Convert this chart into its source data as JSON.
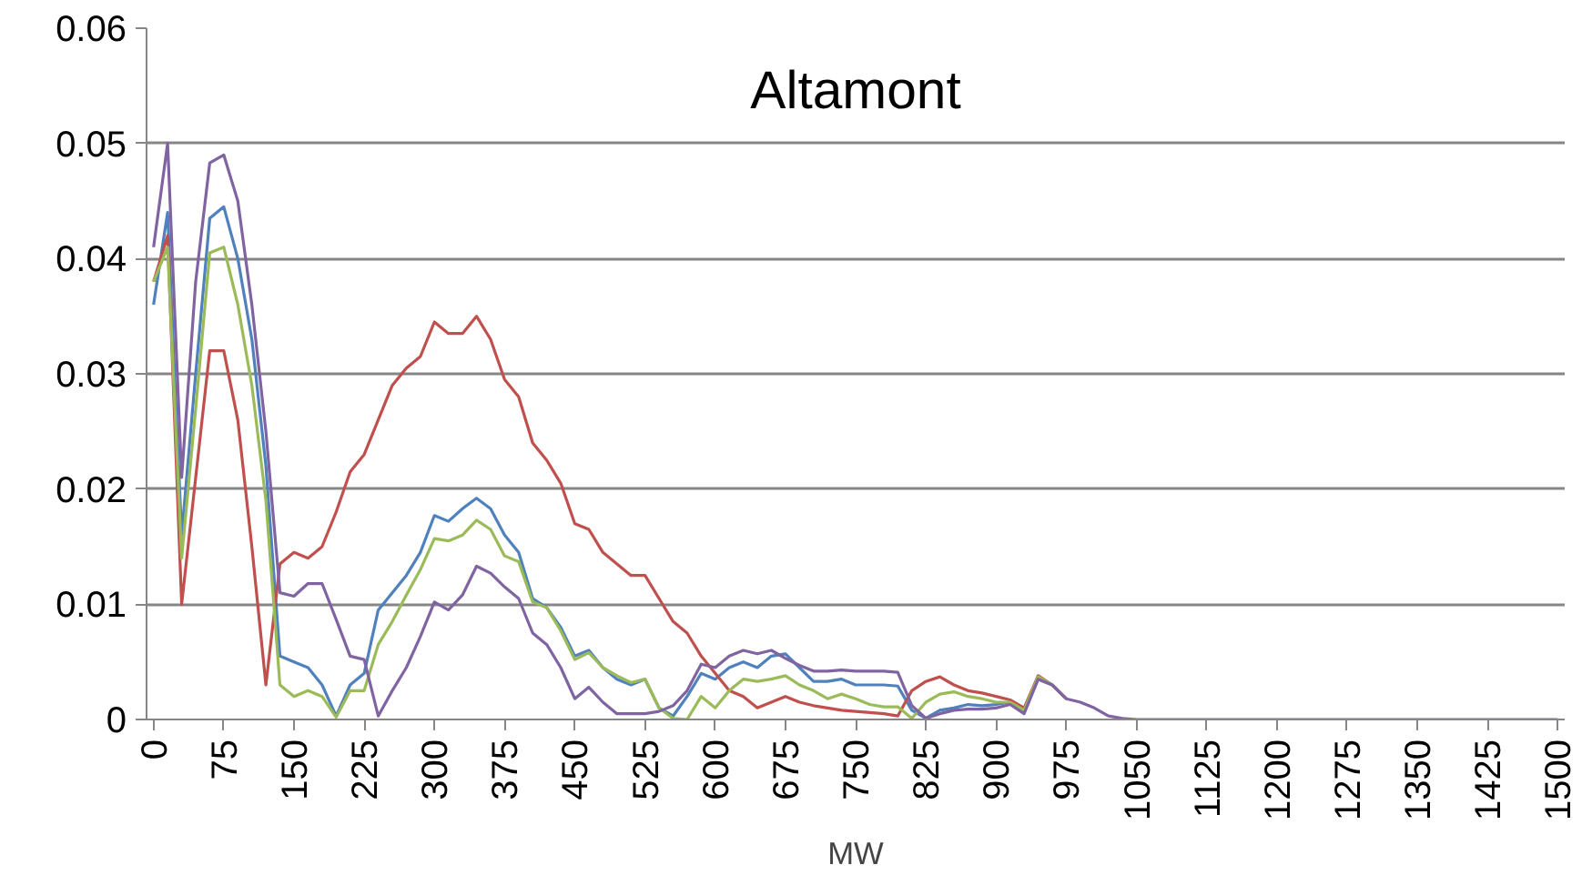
{
  "chart_data": {
    "type": "line",
    "title": "Altamont",
    "xlabel": "MW",
    "x": [
      0,
      15,
      30,
      45,
      60,
      75,
      90,
      105,
      120,
      135,
      150,
      165,
      180,
      195,
      210,
      225,
      240,
      255,
      270,
      285,
      300,
      315,
      330,
      345,
      360,
      375,
      390,
      405,
      420,
      435,
      450,
      465,
      480,
      495,
      510,
      525,
      540,
      555,
      570,
      585,
      600,
      615,
      630,
      645,
      660,
      675,
      690,
      705,
      720,
      735,
      750,
      765,
      780,
      795,
      810,
      825,
      840,
      855,
      870,
      885,
      900,
      915,
      930,
      945,
      960,
      975,
      990,
      1005,
      1020,
      1035,
      1050,
      1065,
      1080,
      1095,
      1110,
      1125,
      1140,
      1155,
      1170,
      1185,
      1200,
      1215,
      1230,
      1245,
      1260,
      1275,
      1290,
      1305,
      1320,
      1335,
      1350,
      1365,
      1380,
      1395,
      1410,
      1425,
      1440,
      1455,
      1470,
      1485,
      1500
    ],
    "xlim": [
      -7.5,
      1507.5
    ],
    "xticks": [
      0,
      75,
      150,
      225,
      300,
      375,
      450,
      525,
      600,
      675,
      750,
      825,
      900,
      975,
      1050,
      1125,
      1200,
      1275,
      1350,
      1425,
      1500
    ],
    "ylim": [
      0,
      0.06
    ],
    "yticks": [
      0,
      0.01,
      0.02,
      0.03,
      0.04,
      0.05,
      0.06
    ],
    "grid": "y",
    "marker": "none",
    "line_style": "solid",
    "series": [
      {
        "color": "#4f81bd",
        "values": [
          0.036,
          0.044,
          0.016,
          0.03,
          0.0435,
          0.0445,
          0.04,
          0.033,
          0.022,
          0.0055,
          0.005,
          0.0045,
          0.003,
          0.0003,
          0.003,
          0.004,
          0.0095,
          0.011,
          0.0125,
          0.0145,
          0.0177,
          0.0172,
          0.0183,
          0.0192,
          0.0183,
          0.016,
          0.0145,
          0.0105,
          0.0097,
          0.008,
          0.0055,
          0.006,
          0.0045,
          0.0035,
          0.003,
          0.0035,
          0.001,
          0.0003,
          0.002,
          0.004,
          0.0035,
          0.0045,
          0.005,
          0.0045,
          0.0055,
          0.0057,
          0.0045,
          0.0033,
          0.0033,
          0.0035,
          0.003,
          0.003,
          0.003,
          0.0029,
          0.0008,
          0.0001,
          0.0008,
          0.001,
          0.0013,
          0.0012,
          0.0013,
          0.0015,
          0.0007,
          0.0035,
          0.003,
          0.0018,
          null,
          null,
          null,
          null,
          null,
          null,
          null,
          null,
          null,
          null,
          null,
          null,
          null,
          null,
          null,
          null,
          null,
          null,
          null,
          null,
          null,
          null,
          null,
          null,
          null,
          null,
          null,
          null,
          null,
          null,
          null,
          null,
          null,
          null,
          null
        ]
      },
      {
        "color": "#c0504d",
        "values": [
          0.038,
          0.042,
          0.01,
          0.021,
          0.032,
          0.032,
          0.026,
          0.015,
          0.003,
          0.0135,
          0.0145,
          0.014,
          0.015,
          0.018,
          0.0215,
          0.023,
          0.026,
          0.029,
          0.0305,
          0.0315,
          0.0345,
          0.0335,
          0.0335,
          0.035,
          0.033,
          0.0295,
          0.028,
          0.024,
          0.0225,
          0.0205,
          0.017,
          0.0165,
          0.0145,
          0.0135,
          0.0125,
          0.0125,
          0.0105,
          0.0085,
          0.0075,
          0.0055,
          0.004,
          0.0025,
          0.002,
          0.001,
          0.0015,
          0.002,
          0.0015,
          0.0012,
          0.001,
          0.0008,
          0.0007,
          0.0006,
          0.0005,
          0.0003,
          0.0025,
          0.0033,
          0.0037,
          0.003,
          0.0025,
          0.0023,
          0.002,
          0.0017,
          0.001,
          0.0038,
          0.003,
          0.0018,
          null,
          null,
          null,
          null,
          null,
          null,
          null,
          null,
          null,
          null,
          null,
          null,
          null,
          null,
          null,
          null,
          null,
          null,
          null,
          null,
          null,
          null,
          null,
          null,
          null,
          null,
          null,
          null,
          null,
          null,
          null,
          null,
          null,
          null,
          null
        ]
      },
      {
        "color": "#9bbb59",
        "values": [
          0.038,
          0.041,
          0.014,
          0.027,
          0.0405,
          0.041,
          0.036,
          0.029,
          0.019,
          0.003,
          0.002,
          0.0025,
          0.002,
          0.0002,
          0.0025,
          0.0025,
          0.0065,
          0.0085,
          0.0108,
          0.013,
          0.0157,
          0.0155,
          0.016,
          0.0173,
          0.0165,
          0.0142,
          0.0137,
          0.0102,
          0.0097,
          0.0077,
          0.0052,
          0.0058,
          0.0045,
          0.0038,
          0.0032,
          0.0035,
          0.001,
          0.0001,
          0,
          0.002,
          0.001,
          0.0025,
          0.0035,
          0.0033,
          0.0035,
          0.0038,
          0.003,
          0.0025,
          0.0018,
          0.0022,
          0.0018,
          0.0013,
          0.0011,
          0.0011,
          0.0001,
          0.0015,
          0.0022,
          0.0024,
          0.002,
          0.0018,
          0.0015,
          0.0015,
          0.0008,
          0.0037,
          0.003,
          0.0018,
          null,
          null,
          null,
          null,
          null,
          null,
          null,
          null,
          null,
          null,
          null,
          null,
          null,
          null,
          null,
          null,
          null,
          null,
          null,
          null,
          null,
          null,
          null,
          null,
          null,
          null,
          null,
          null,
          null,
          null,
          null,
          null,
          null,
          null,
          null
        ]
      },
      {
        "color": "#8064a2",
        "values": [
          0.041,
          0.05,
          0.021,
          0.038,
          0.0483,
          0.049,
          0.045,
          0.036,
          0.025,
          0.011,
          0.0107,
          0.0118,
          0.0118,
          0.0087,
          0.0055,
          0.0052,
          0.0003,
          0.0025,
          0.0045,
          0.0072,
          0.0102,
          0.0095,
          0.0108,
          0.0133,
          0.0127,
          0.0115,
          0.0105,
          0.0075,
          0.0065,
          0.0045,
          0.0018,
          0.0028,
          0.0015,
          0.0005,
          0.0005,
          0.0005,
          0.0007,
          0.0012,
          0.0025,
          0.0048,
          0.0045,
          0.0055,
          0.006,
          0.0057,
          0.006,
          0.0053,
          0.0047,
          0.0042,
          0.0042,
          0.0043,
          0.0042,
          0.0042,
          0.0042,
          0.0041,
          0.0012,
          0.0001,
          0.0005,
          0.0008,
          0.0009,
          0.0009,
          0.001,
          0.0013,
          0.0005,
          0.0035,
          0.003,
          0.0018,
          0.0015,
          0.001,
          0.0003,
          0.0001,
          0,
          0,
          0,
          0,
          0,
          0,
          0,
          0,
          0,
          0,
          0,
          0,
          0,
          0,
          0,
          0,
          0,
          0,
          0,
          0,
          0,
          0,
          0,
          0,
          0,
          0,
          0,
          0,
          0,
          0,
          0
        ]
      }
    ]
  }
}
